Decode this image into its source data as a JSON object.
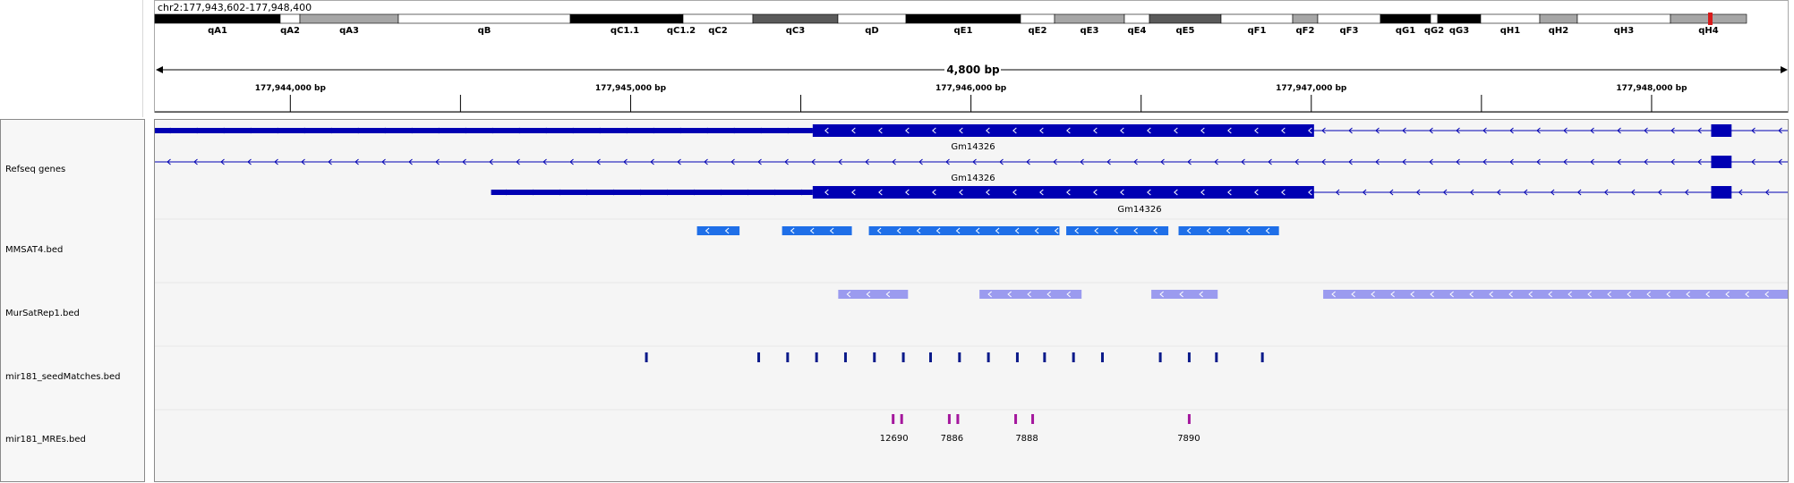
{
  "locus": "chr2:177,943,602-177,948,400",
  "span_label": "4,800 bp",
  "colors": {
    "gene": "#0000b3",
    "mmsat4": "#1f6fe8",
    "mursatrep1": "#9b9bef",
    "seed": "#0a1a8a",
    "mre": "#a4179d",
    "cytoband_stain": "#000000",
    "cytoband_gvar": "#5a5a5a",
    "cytoband_light": "#a6a6a6",
    "centromere": "#d81a1a"
  },
  "ideogram": {
    "bands": [
      {
        "name": "qA1",
        "stain": "gpos100"
      },
      {
        "name": "qA2",
        "stain": "gneg"
      },
      {
        "name": "qA3",
        "stain": "gpos33"
      },
      {
        "name": "qB",
        "stain": "gneg"
      },
      {
        "name": "qC1.1",
        "stain": "gpos100"
      },
      {
        "name": "qC1.2",
        "stain": "gpos100"
      },
      {
        "name": "qC2",
        "stain": "gneg"
      },
      {
        "name": "qC3",
        "stain": "gpos75"
      },
      {
        "name": "qD",
        "stain": "gneg"
      },
      {
        "name": "qE1",
        "stain": "gpos100"
      },
      {
        "name": "qE2",
        "stain": "gneg"
      },
      {
        "name": "qE3",
        "stain": "gpos33"
      },
      {
        "name": "qE4",
        "stain": "gneg"
      },
      {
        "name": "qE5",
        "stain": "gpos75"
      },
      {
        "name": "qF1",
        "stain": "gneg"
      },
      {
        "name": "qF2",
        "stain": "gpos33"
      },
      {
        "name": "qF3",
        "stain": "gneg"
      },
      {
        "name": "qG1",
        "stain": "gpos100"
      },
      {
        "name": "qG2",
        "stain": "gneg"
      },
      {
        "name": "qG3",
        "stain": "gpos100"
      },
      {
        "name": "qH1",
        "stain": "gneg"
      },
      {
        "name": "qH2",
        "stain": "gpos33"
      },
      {
        "name": "qH3",
        "stain": "gneg"
      },
      {
        "name": "qH4",
        "stain": "gpos33"
      }
    ],
    "current_band": "qH4"
  },
  "ruler": {
    "start": 177943602,
    "end": 177948400,
    "major_ticks": [
      {
        "pos": 177944000,
        "label": "177,944,000 bp"
      },
      {
        "pos": 177945000,
        "label": "177,945,000 bp"
      },
      {
        "pos": 177946000,
        "label": "177,946,000 bp"
      },
      {
        "pos": 177947000,
        "label": "177,947,000 bp"
      },
      {
        "pos": 177948000,
        "label": "177,948,000 bp"
      }
    ],
    "minor_ticks": [
      177944500,
      177945500,
      177946500,
      177947500
    ]
  },
  "tracks": [
    {
      "id": "refseq",
      "label": "Refseq genes"
    },
    {
      "id": "mmsat4",
      "label": "MMSAT4.bed"
    },
    {
      "id": "mursatrep1",
      "label": "MurSatRep1.bed"
    },
    {
      "id": "seed",
      "label": "mir181_seedMatches.bed"
    },
    {
      "id": "mres",
      "label": "mir181_MREs.bed"
    }
  ],
  "genes": [
    {
      "name": "Gm14326",
      "strand": "-",
      "start": 177943602,
      "end": 177948400,
      "utr_start": 177943602,
      "utr_end": 177945535,
      "cds": [
        [
          177945535,
          177947008
        ],
        [
          177948175,
          177948235
        ]
      ]
    },
    {
      "name": "Gm14326",
      "strand": "-",
      "start": 177943602,
      "end": 177948400,
      "utr_start": null,
      "utr_end": null,
      "cds": [
        [
          177948175,
          177948235
        ]
      ]
    },
    {
      "name": "Gm14326",
      "strand": "-",
      "start": 177944590,
      "end": 177948400,
      "utr_start": 177944590,
      "utr_end": 177945535,
      "cds": [
        [
          177945535,
          177947008
        ],
        [
          177948175,
          177948235
        ]
      ]
    }
  ],
  "mmsat4": [
    [
      177945195,
      177945320
    ],
    [
      177945445,
      177945650
    ],
    [
      177945700,
      177946260
    ],
    [
      177946280,
      177946580
    ],
    [
      177946610,
      177946905
    ]
  ],
  "mursatrep1": [
    [
      177945610,
      177945815
    ],
    [
      177946025,
      177946325
    ],
    [
      177946530,
      177946725
    ],
    [
      177947035,
      177948400
    ]
  ],
  "seed_matches": [
    177945045,
    177945375,
    177945460,
    177945545,
    177945630,
    177945715,
    177945800,
    177945880,
    177945965,
    177946050,
    177946135,
    177946215,
    177946300,
    177946385,
    177946555,
    177946640,
    177946720,
    177946855
  ],
  "mres": [
    {
      "pos": 177945770,
      "label": ""
    },
    {
      "pos": 177945795,
      "label": "12690"
    },
    {
      "pos": 177945935,
      "label": ""
    },
    {
      "pos": 177945960,
      "label": "7886"
    },
    {
      "pos": 177946130,
      "label": ""
    },
    {
      "pos": 177946180,
      "label": "7888"
    },
    {
      "pos": 177946640,
      "label": "7890"
    }
  ]
}
